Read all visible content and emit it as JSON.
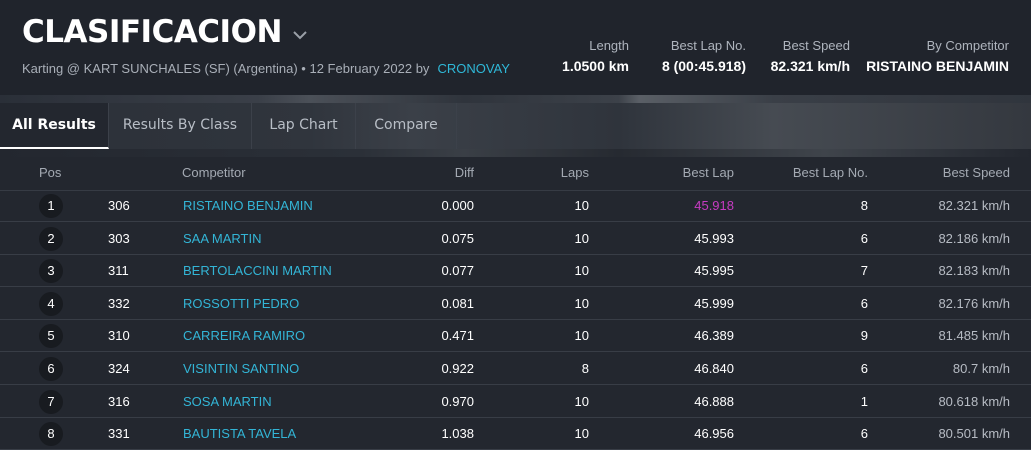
{
  "header": {
    "title": "CLASIFICACION",
    "subtitle": "Karting @ KART SUNCHALES (SF) (Argentina) • 12 February 2022 by",
    "organizer": "CRONOVAY",
    "stats": [
      {
        "label": "Length",
        "value": "1.0500 km"
      },
      {
        "label": "Best Lap No.",
        "value": "8 (00:45.918)"
      },
      {
        "label": "Best Speed",
        "value": "82.321 km/h"
      },
      {
        "label": "By Competitor",
        "value": "RISTAINO BENJAMIN"
      }
    ]
  },
  "tabs": [
    {
      "label": "All Results",
      "active": true
    },
    {
      "label": "Results By Class",
      "active": false
    },
    {
      "label": "Lap Chart",
      "active": false
    },
    {
      "label": "Compare",
      "active": false
    }
  ],
  "table": {
    "columns": {
      "pos": "Pos",
      "competitor": "Competitor",
      "diff": "Diff",
      "laps": "Laps",
      "best_lap": "Best Lap",
      "best_lap_no": "Best Lap No.",
      "best_speed": "Best Speed"
    },
    "rows": [
      {
        "pos": "1",
        "no": "306",
        "competitor": "RISTAINO BENJAMIN",
        "diff": "0.000",
        "laps": "10",
        "best_lap": "45.918",
        "best_lap_no": "8",
        "best_speed": "82.321 km/h",
        "fastest": true
      },
      {
        "pos": "2",
        "no": "303",
        "competitor": "SAA MARTIN",
        "diff": "0.075",
        "laps": "10",
        "best_lap": "45.993",
        "best_lap_no": "6",
        "best_speed": "82.186 km/h"
      },
      {
        "pos": "3",
        "no": "311",
        "competitor": "BERTOLACCINI MARTIN",
        "diff": "0.077",
        "laps": "10",
        "best_lap": "45.995",
        "best_lap_no": "7",
        "best_speed": "82.183 km/h"
      },
      {
        "pos": "4",
        "no": "332",
        "competitor": "ROSSOTTI PEDRO",
        "diff": "0.081",
        "laps": "10",
        "best_lap": "45.999",
        "best_lap_no": "6",
        "best_speed": "82.176 km/h"
      },
      {
        "pos": "5",
        "no": "310",
        "competitor": "CARREIRA RAMIRO",
        "diff": "0.471",
        "laps": "10",
        "best_lap": "46.389",
        "best_lap_no": "9",
        "best_speed": "81.485 km/h"
      },
      {
        "pos": "6",
        "no": "324",
        "competitor": "VISINTIN SANTINO",
        "diff": "0.922",
        "laps": "8",
        "best_lap": "46.840",
        "best_lap_no": "6",
        "best_speed": "80.7 km/h"
      },
      {
        "pos": "7",
        "no": "316",
        "competitor": "SOSA MARTIN",
        "diff": "0.970",
        "laps": "10",
        "best_lap": "46.888",
        "best_lap_no": "1",
        "best_speed": "80.618 km/h"
      },
      {
        "pos": "8",
        "no": "331",
        "competitor": "BAUTISTA TAVELA",
        "diff": "1.038",
        "laps": "10",
        "best_lap": "46.956",
        "best_lap_no": "6",
        "best_speed": "80.501 km/h"
      }
    ]
  }
}
